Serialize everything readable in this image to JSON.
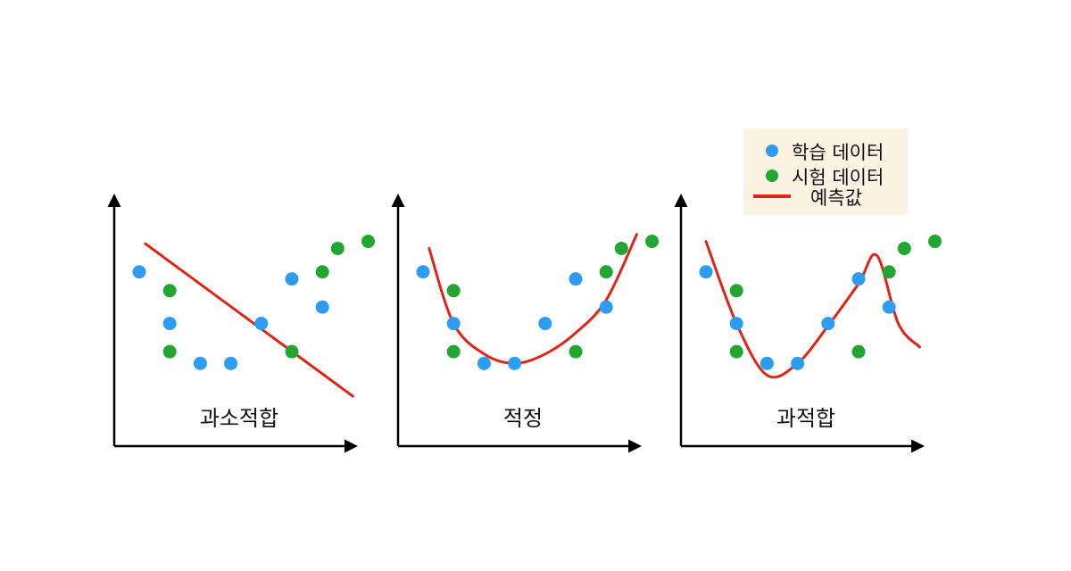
{
  "colors": {
    "train": "#2e9cf2",
    "test": "#22a531",
    "prediction": "#e02418",
    "axis": "#000000",
    "legend_bg": "#fdf3e3"
  },
  "legend": {
    "train_label": "학습 데이터",
    "test_label": "시험 데이터",
    "prediction_label": "예측값"
  },
  "chart_data": [
    {
      "type": "scatter",
      "title": "과소적합",
      "fit": "linear",
      "series": [
        {
          "name": "학습 데이터",
          "points": [
            [
              1,
              6.5
            ],
            [
              2,
              4.3
            ],
            [
              3,
              2.6
            ],
            [
              4,
              2.6
            ],
            [
              5,
              4.3
            ],
            [
              6,
              6.2
            ],
            [
              7,
              5.0
            ]
          ]
        },
        {
          "name": "시험 데이터",
          "points": [
            [
              2,
              5.7
            ],
            [
              2,
              3.1
            ],
            [
              6,
              3.1
            ],
            [
              7,
              6.5
            ],
            [
              7.5,
              7.5
            ],
            [
              8.5,
              7.8
            ]
          ]
        },
        {
          "name": "예측값",
          "points": [
            [
              1.2,
              7.7
            ],
            [
              8.0,
              1.2
            ]
          ]
        }
      ]
    },
    {
      "type": "scatter",
      "title": "적정",
      "fit": "smooth",
      "series": [
        {
          "name": "학습 데이터",
          "points": [
            [
              1,
              6.5
            ],
            [
              2,
              4.3
            ],
            [
              3,
              2.6
            ],
            [
              4,
              2.6
            ],
            [
              5,
              4.3
            ],
            [
              6,
              6.2
            ],
            [
              7,
              5.0
            ]
          ]
        },
        {
          "name": "시험 데이터",
          "points": [
            [
              2,
              5.7
            ],
            [
              2,
              3.1
            ],
            [
              6,
              3.1
            ],
            [
              7,
              6.5
            ],
            [
              7.5,
              7.5
            ],
            [
              8.5,
              7.8
            ]
          ]
        },
        {
          "name": "예측값",
          "points": [
            [
              1.2,
              7.5
            ],
            [
              2.0,
              4.3
            ],
            [
              3.0,
              3.0
            ],
            [
              4.0,
              2.6
            ],
            [
              5.0,
              3.0
            ],
            [
              6.0,
              3.9
            ],
            [
              7.0,
              5.3
            ],
            [
              8.0,
              8.1
            ]
          ]
        }
      ]
    },
    {
      "type": "scatter",
      "title": "과적합",
      "fit": "overfit",
      "series": [
        {
          "name": "학습 데이터",
          "points": [
            [
              1,
              6.5
            ],
            [
              2,
              4.3
            ],
            [
              3,
              2.6
            ],
            [
              4,
              2.6
            ],
            [
              5,
              4.3
            ],
            [
              6,
              6.2
            ],
            [
              7,
              5.0
            ]
          ]
        },
        {
          "name": "시험 데이터",
          "points": [
            [
              2,
              5.7
            ],
            [
              2,
              3.1
            ],
            [
              6,
              3.1
            ],
            [
              7,
              6.5
            ],
            [
              7.5,
              7.5
            ],
            [
              8.5,
              7.8
            ]
          ]
        },
        {
          "name": "예측값",
          "points": [
            [
              1.0,
              7.8
            ],
            [
              2.0,
              4.3
            ],
            [
              3.0,
              2.1
            ],
            [
              4.0,
              2.6
            ],
            [
              5.0,
              4.2
            ],
            [
              6.0,
              6.0
            ],
            [
              6.6,
              7.2
            ],
            [
              7.3,
              4.3
            ],
            [
              8.0,
              3.3
            ]
          ]
        }
      ]
    }
  ]
}
